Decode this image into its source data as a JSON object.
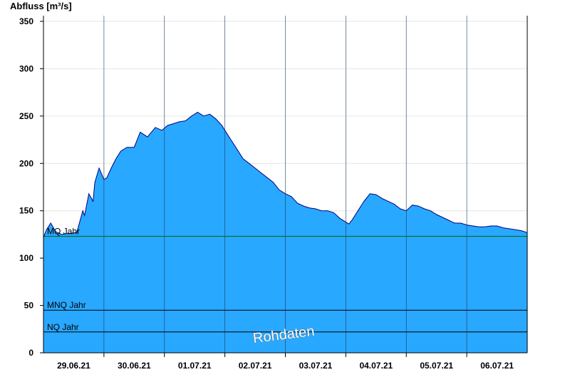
{
  "chart_data": {
    "type": "area",
    "ylabel": "Abfluss [m³/s]",
    "ylim": [
      0,
      356
    ],
    "yticks": [
      0,
      50,
      100,
      150,
      200,
      250,
      300,
      350
    ],
    "xlim": [
      0,
      8
    ],
    "xtick_labels": [
      "29.06.21",
      "30.06.21",
      "01.07.21",
      "02.07.21",
      "03.07.21",
      "04.07.21",
      "05.07.21",
      "06.07.21"
    ],
    "x_unit": "days since 29.06.21 00:00",
    "grid": true,
    "colors": {
      "fill": "#29a8ff",
      "line": "#000080",
      "mq_line": "#006600",
      "ref_line": "#000000"
    },
    "reference_lines": [
      {
        "label": "MQ Jahr",
        "value": 123
      },
      {
        "label": "MNQ Jahr",
        "value": 45
      },
      {
        "label": "NQ Jahr",
        "value": 22
      }
    ],
    "watermark": "Rohdaten",
    "series": [
      {
        "x": [
          0.0,
          0.05,
          0.12,
          0.2,
          0.3,
          0.4,
          0.55,
          0.65,
          0.68,
          0.75,
          0.82,
          0.85,
          0.92,
          1.0,
          1.05,
          1.12,
          1.2,
          1.28,
          1.38,
          1.5,
          1.6,
          1.72,
          1.85,
          1.92,
          1.96,
          2.05,
          2.15,
          2.25,
          2.35,
          2.45,
          2.55,
          2.65,
          2.75,
          2.85,
          2.95,
          3.0,
          3.1,
          3.2,
          3.3,
          3.4,
          3.5,
          3.6,
          3.7,
          3.8,
          3.9,
          4.0,
          4.1,
          4.2,
          4.3,
          4.4,
          4.5,
          4.6,
          4.7,
          4.8,
          4.9,
          5.0,
          5.05,
          5.1,
          5.2,
          5.3,
          5.4,
          5.5,
          5.6,
          5.7,
          5.8,
          5.9,
          6.0,
          6.1,
          6.2,
          6.3,
          6.4,
          6.5,
          6.6,
          6.7,
          6.8,
          6.9,
          7.0,
          7.1,
          7.2,
          7.3,
          7.4,
          7.5,
          7.6,
          7.7,
          7.8,
          7.9,
          8.0
        ],
        "y": [
          122,
          130,
          137,
          128,
          125,
          126,
          127,
          150,
          145,
          168,
          160,
          180,
          195,
          183,
          185,
          195,
          205,
          213,
          217,
          217,
          233,
          228,
          238,
          236,
          235,
          240,
          242,
          244,
          245,
          250,
          254,
          250,
          252,
          247,
          240,
          235,
          225,
          215,
          205,
          200,
          195,
          190,
          185,
          180,
          172,
          168,
          165,
          158,
          155,
          153,
          152,
          150,
          150,
          148,
          142,
          138,
          136,
          140,
          150,
          160,
          168,
          167,
          163,
          160,
          157,
          152,
          150,
          156,
          155,
          152,
          150,
          146,
          143,
          140,
          137,
          137,
          135,
          134,
          133,
          133,
          134,
          134,
          132,
          131,
          130,
          129,
          127
        ]
      }
    ]
  }
}
